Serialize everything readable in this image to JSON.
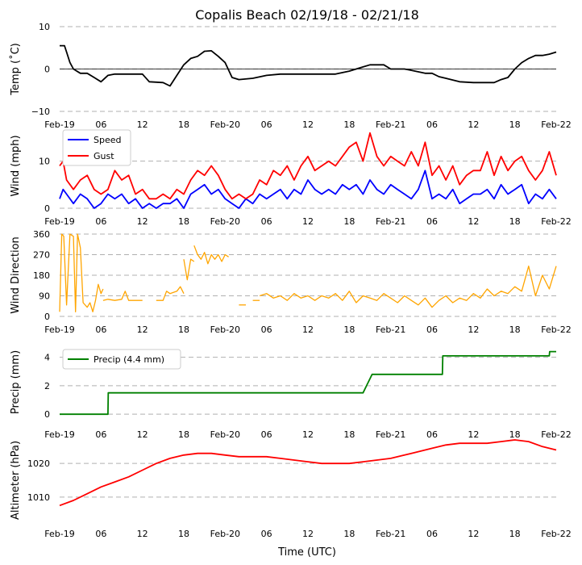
{
  "figure": {
    "title": "Copalis Beach 02/19/18 - 02/21/18",
    "xlabel": "Time (UTC)"
  },
  "colors": {
    "temp": "#000000",
    "speed": "#0000ff",
    "gust": "#ff0000",
    "direction": "#ffa500",
    "precip": "#008000",
    "altimeter": "#ff0000",
    "grid": "#b0b0b0"
  },
  "x_axis": {
    "range_hours": [
      0,
      72
    ],
    "tick_hours": [
      0,
      6,
      12,
      18,
      24,
      30,
      36,
      42,
      48,
      54,
      60,
      66,
      72
    ],
    "tick_labels": [
      "Feb-19",
      "06",
      "12",
      "18",
      "Feb-20",
      "06",
      "12",
      "18",
      "Feb-21",
      "06",
      "12",
      "18",
      "Feb-22"
    ]
  },
  "chart_data": [
    {
      "type": "line",
      "id": "temp",
      "ylabel": "Temp ($^\\circ$C)",
      "ylabel_display": "Temp (˚C)",
      "ylim": [
        -10,
        10
      ],
      "yticks": [
        -10,
        0,
        10
      ],
      "ytick_labels": [
        "−10",
        "0",
        "10"
      ],
      "zero_line": true,
      "series": [
        {
          "name": "Temp",
          "x": [
            0,
            0.7,
            1,
            1.5,
            2,
            3,
            4,
            5,
            6,
            7,
            8,
            10,
            12,
            13,
            15,
            16,
            17,
            18,
            19,
            20,
            21,
            22,
            23,
            24,
            25,
            26,
            28,
            30,
            32,
            34,
            36,
            38,
            40,
            42,
            44,
            45,
            46,
            47,
            48,
            49,
            50,
            51,
            53,
            54,
            55,
            56,
            58,
            60,
            61,
            63,
            64,
            65,
            66,
            67,
            68,
            69,
            70,
            71,
            72
          ],
          "values": [
            5.5,
            5.5,
            4,
            1.5,
            0,
            -1,
            -1,
            -2,
            -3,
            -1.5,
            -1.2,
            -1.2,
            -1.2,
            -3,
            -3.2,
            -4,
            -1.5,
            1,
            2.5,
            3,
            4.2,
            4.3,
            3,
            1.5,
            -2,
            -2.5,
            -2.2,
            -1.5,
            -1.2,
            -1.2,
            -1.2,
            -1.2,
            -1.2,
            -0.5,
            0.5,
            1,
            1,
            1,
            0,
            0,
            0,
            -0.3,
            -1,
            -1,
            -1.8,
            -2.2,
            -3,
            -3.2,
            -3.2,
            -3.2,
            -2.5,
            -2,
            0,
            1.5,
            2.5,
            3.2,
            3.2,
            3.5,
            4
          ]
        }
      ]
    },
    {
      "type": "line",
      "id": "wind",
      "ylabel": "Wind (mph)",
      "ylim": [
        0,
        18
      ],
      "yticks": [
        0,
        10
      ],
      "ytick_labels": [
        "0",
        "10"
      ],
      "legend": {
        "placement": "upper-left"
      },
      "series": [
        {
          "name": "Speed",
          "x": [
            0,
            0.5,
            1,
            2,
            3,
            4,
            5,
            6,
            7,
            8,
            9,
            10,
            11,
            12,
            13,
            14,
            15,
            16,
            17,
            18,
            19,
            20,
            21,
            22,
            23,
            24,
            25,
            26,
            27,
            28,
            29,
            30,
            31,
            32,
            33,
            34,
            35,
            36,
            37,
            38,
            39,
            40,
            41,
            42,
            43,
            44,
            45,
            46,
            47,
            48,
            49,
            50,
            51,
            52,
            53,
            54,
            55,
            56,
            57,
            58,
            59,
            60,
            61,
            62,
            63,
            64,
            65,
            66,
            67,
            68,
            69,
            70,
            71,
            72
          ],
          "values": [
            2,
            4,
            3,
            1,
            3,
            2,
            0,
            1,
            3,
            2,
            3,
            1,
            2,
            0,
            1,
            0,
            1,
            1,
            2,
            0,
            3,
            4,
            5,
            3,
            4,
            2,
            1,
            0,
            2,
            1,
            3,
            2,
            3,
            4,
            2,
            4,
            3,
            6,
            4,
            3,
            4,
            3,
            5,
            4,
            5,
            3,
            6,
            4,
            3,
            5,
            4,
            3,
            2,
            4,
            8,
            2,
            3,
            2,
            4,
            1,
            2,
            3,
            3,
            4,
            2,
            5,
            3,
            4,
            5,
            1,
            3,
            2,
            4,
            2
          ]
        },
        {
          "name": "Gust",
          "x": [
            0,
            0.5,
            1,
            2,
            3,
            4,
            5,
            6,
            7,
            8,
            9,
            10,
            11,
            12,
            13,
            14,
            15,
            16,
            17,
            18,
            19,
            20,
            21,
            22,
            23,
            24,
            25,
            26,
            27,
            28,
            29,
            30,
            31,
            32,
            33,
            34,
            35,
            36,
            37,
            38,
            39,
            40,
            41,
            42,
            43,
            44,
            45,
            46,
            47,
            48,
            49,
            50,
            51,
            52,
            53,
            54,
            55,
            56,
            57,
            58,
            59,
            60,
            61,
            62,
            63,
            64,
            65,
            66,
            67,
            68,
            69,
            70,
            71,
            72
          ],
          "values": [
            9,
            10,
            6,
            4,
            6,
            7,
            4,
            3,
            4,
            8,
            6,
            7,
            3,
            4,
            2,
            2,
            3,
            2,
            4,
            3,
            6,
            8,
            7,
            9,
            7,
            4,
            2,
            3,
            2,
            3,
            6,
            5,
            8,
            7,
            9,
            6,
            9,
            11,
            8,
            9,
            10,
            9,
            11,
            13,
            14,
            10,
            16,
            11,
            9,
            11,
            10,
            9,
            12,
            9,
            14,
            7,
            9,
            6,
            9,
            5,
            7,
            8,
            8,
            12,
            7,
            11,
            8,
            10,
            11,
            8,
            6,
            8,
            12,
            7
          ]
        }
      ]
    },
    {
      "type": "line",
      "id": "wind_direction",
      "ylabel": "Wind Direction",
      "ylim": [
        0,
        360
      ],
      "yticks": [
        0,
        90,
        180,
        270,
        360
      ],
      "ytick_labels": [
        "0",
        "90",
        "180",
        "270",
        "360"
      ],
      "series": [
        {
          "name": "Wind Direction",
          "segments": [
            {
              "x": [
                0,
                0.3,
                0.6,
                1,
                1.5,
                2,
                2.3,
                2.6,
                3,
                3.4,
                4,
                4.4,
                4.8,
                5.2,
                5.6,
                6,
                6.3
              ],
              "values": [
                20,
                360,
                350,
                50,
                360,
                350,
                20,
                360,
                300,
                60,
                40,
                60,
                20,
                70,
                140,
                100,
                120
              ]
            },
            {
              "x": [
                6.3,
                7,
                8,
                9,
                9.5,
                10,
                11,
                12
              ],
              "values": [
                70,
                75,
                70,
                75,
                110,
                70,
                70,
                70
              ]
            },
            {
              "x": [
                14,
                15,
                15.5,
                16,
                17,
                17.5,
                18
              ],
              "values": [
                70,
                70,
                110,
                100,
                110,
                130,
                100
              ]
            },
            {
              "x": [
                18,
                18.5,
                19,
                19.5
              ],
              "values": [
                250,
                160,
                250,
                240
              ]
            },
            {
              "x": [
                19.5,
                20,
                20.5,
                21,
                21.5,
                22,
                22.5,
                23,
                23.5,
                24,
                24.5
              ],
              "values": [
                310,
                270,
                250,
                280,
                230,
                270,
                250,
                270,
                240,
                270,
                260
              ]
            },
            {
              "x": [
                26,
                27
              ],
              "values": [
                50,
                50
              ]
            },
            {
              "x": [
                28,
                29
              ],
              "values": [
                70,
                70
              ]
            },
            {
              "x": [
                29,
                30,
                31,
                32,
                33,
                34,
                35,
                36,
                37,
                38,
                39,
                40,
                41,
                42,
                43,
                44,
                45,
                46,
                47,
                48,
                49,
                50,
                51,
                52,
                53,
                54,
                55,
                56,
                57,
                58,
                59,
                60,
                61,
                62,
                63,
                64,
                65,
                66,
                67,
                68,
                69,
                70,
                71,
                72
              ],
              "values": [
                90,
                100,
                80,
                90,
                70,
                100,
                80,
                90,
                70,
                90,
                80,
                100,
                70,
                110,
                60,
                90,
                80,
                70,
                100,
                80,
                60,
                90,
                70,
                50,
                80,
                40,
                70,
                90,
                60,
                80,
                70,
                100,
                80,
                120,
                90,
                110,
                100,
                130,
                110,
                220,
                90,
                180,
                120,
                220
              ]
            }
          ]
        }
      ]
    },
    {
      "type": "line",
      "id": "precip",
      "ylabel": "Precip (mm)",
      "ylim": [
        -0.5,
        5.0
      ],
      "yticks": [
        0,
        2,
        4
      ],
      "ytick_labels": [
        "0",
        "2",
        "4"
      ],
      "legend": {
        "placement": "upper-left"
      },
      "series": [
        {
          "name": "Precip (4.4 mm)",
          "x": [
            0,
            7,
            7.05,
            44,
            44.5,
            45,
            45.3,
            46,
            55.5,
            55.55,
            71,
            71.05,
            72
          ],
          "values": [
            0,
            0,
            1.5,
            1.5,
            2.0,
            2.5,
            2.8,
            2.8,
            2.8,
            4.1,
            4.1,
            4.4,
            4.4
          ]
        }
      ]
    },
    {
      "type": "line",
      "id": "altimeter",
      "ylabel": "Altimeter (hPa)",
      "ylim": [
        1003,
        1027
      ],
      "yticks": [
        1010,
        1020
      ],
      "ytick_labels": [
        "1010",
        "1020"
      ],
      "series": [
        {
          "name": "Altimeter",
          "x": [
            0,
            2,
            4,
            6,
            8,
            10,
            12,
            14,
            16,
            18,
            20,
            22,
            24,
            26,
            28,
            30,
            32,
            34,
            36,
            38,
            40,
            42,
            44,
            46,
            48,
            50,
            52,
            54,
            56,
            58,
            60,
            62,
            64,
            66,
            68,
            70,
            72
          ],
          "values": [
            1007.5,
            1009,
            1011,
            1013,
            1014.5,
            1016,
            1018,
            1020,
            1021.5,
            1022.5,
            1023,
            1023,
            1022.5,
            1022,
            1022,
            1022,
            1021.5,
            1021,
            1020.5,
            1020,
            1020,
            1020,
            1020.5,
            1021,
            1021.5,
            1022.5,
            1023.5,
            1024.5,
            1025.5,
            1026,
            1026,
            1026,
            1026.5,
            1027,
            1026.5,
            1025,
            1024
          ]
        }
      ]
    }
  ]
}
